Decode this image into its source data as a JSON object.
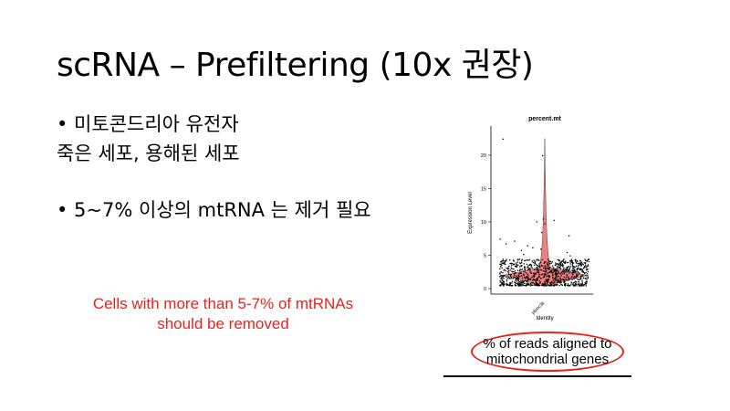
{
  "slide": {
    "title": "scRNA – Prefiltering (10x 권장)",
    "bullets": [
      "• 미토콘드리아 유전자",
      "죽은 세포, 용해된 세포",
      "• 5~7% 이상의 mtRNA 는 제거 필요"
    ],
    "note": [
      "Cells with more than 5-7% of mtRNAs",
      "should be removed"
    ],
    "callout": [
      "% of reads aligned to",
      "mitochondrial genes"
    ],
    "colors": {
      "note": "#e8231d",
      "violin_fill": "#f08080",
      "points": "#000000"
    }
  },
  "chart_data": {
    "type": "violin",
    "title": "percent.mt",
    "xlabel": "Identity",
    "ylabel": "Expression Level",
    "categories": [
      "pbmc3k"
    ],
    "yticks": [
      0,
      5,
      10,
      15,
      20
    ],
    "ylim": [
      0,
      23
    ],
    "summary": {
      "bulk_range": [
        0.5,
        4.5
      ],
      "median": 2.0,
      "max": 22.5
    },
    "outliers": [
      20.0,
      22.5,
      10.3,
      10.1,
      10.5,
      9.8,
      8.5,
      8.0,
      7.5,
      7.2,
      6.8,
      6.5,
      6.2,
      6.0,
      5.8,
      5.5,
      5.2,
      5.0
    ]
  }
}
